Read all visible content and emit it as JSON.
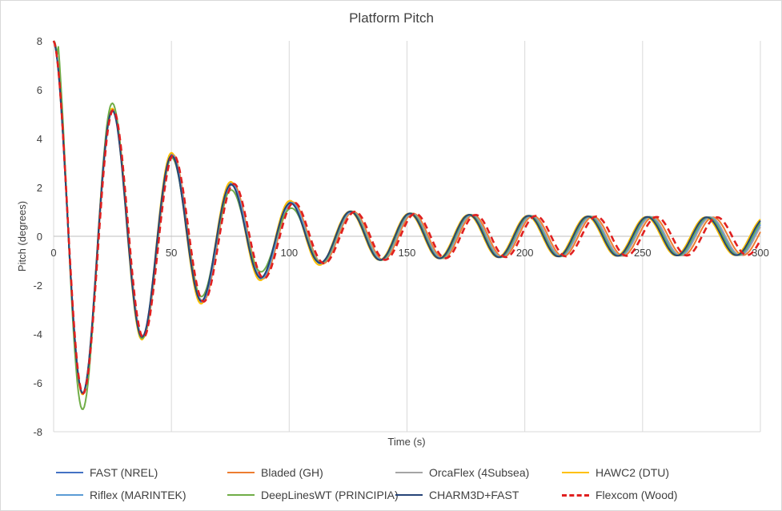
{
  "chart_data": {
    "type": "line",
    "title": "Platform Pitch",
    "xlabel": "Time (s)",
    "ylabel": "Pitch (degrees)",
    "xlim": [
      0,
      300
    ],
    "ylim": [
      -8,
      8
    ],
    "x_ticks": [
      "0",
      "50",
      "100",
      "150",
      "200",
      "250",
      "300"
    ],
    "y_ticks": [
      "8",
      "6",
      "4",
      "2",
      "0",
      "-2",
      "-4",
      "-6",
      "-8"
    ],
    "grid": "vertical-major",
    "legend_position": "bottom",
    "series": [
      {
        "name": "FAST (NREL)",
        "color": "#4472c4",
        "dash": "solid",
        "amp": 8.0,
        "decay": 0.0078,
        "period": 25.3,
        "phase": 0.0,
        "peaks": [
          [
            0,
            8.0
          ],
          [
            26,
            4.6
          ],
          [
            51,
            3.1
          ],
          [
            77,
            2.4
          ],
          [
            102,
            2.0
          ],
          [
            128,
            1.6
          ],
          [
            153,
            1.35
          ],
          [
            179,
            1.15
          ],
          [
            204,
            1.05
          ],
          [
            230,
            0.95
          ],
          [
            255,
            0.85
          ],
          [
            281,
            0.75
          ]
        ]
      },
      {
        "name": "Bladed (GH)",
        "color": "#ed7d31",
        "dash": "solid",
        "amp": 8.0,
        "decay": 0.0078,
        "period": 25.45,
        "phase": 0.0,
        "peaks": [
          [
            0,
            8.0
          ],
          [
            26,
            4.5
          ],
          [
            52,
            3.1
          ],
          [
            77,
            2.4
          ],
          [
            103,
            2.0
          ],
          [
            128,
            1.6
          ],
          [
            154,
            1.35
          ],
          [
            179,
            1.15
          ],
          [
            205,
            1.05
          ],
          [
            230,
            0.95
          ],
          [
            256,
            0.85
          ],
          [
            281,
            0.75
          ]
        ]
      },
      {
        "name": "OrcaFlex (4Subsea)",
        "color": "#a5a5a5",
        "dash": "solid",
        "amp": 8.0,
        "decay": 0.008,
        "period": 25.35,
        "phase": 0.0,
        "peaks": [
          [
            0,
            8.0
          ],
          [
            26,
            4.5
          ],
          [
            51,
            3.0
          ],
          [
            77,
            2.4
          ],
          [
            102,
            1.95
          ],
          [
            128,
            1.6
          ],
          [
            153,
            1.35
          ],
          [
            179,
            1.15
          ],
          [
            204,
            1.05
          ],
          [
            230,
            0.95
          ],
          [
            255,
            0.85
          ],
          [
            281,
            0.75
          ]
        ]
      },
      {
        "name": "HAWC2 (DTU)",
        "color": "#ffc000",
        "dash": "solid",
        "amp": 8.0,
        "decay": 0.0077,
        "period": 25.15,
        "phase": 0.0,
        "peaks": [
          [
            0,
            8.0
          ],
          [
            26,
            4.5
          ],
          [
            51,
            3.1
          ],
          [
            76,
            2.4
          ],
          [
            101,
            2.0
          ],
          [
            127,
            1.65
          ],
          [
            152,
            1.35
          ],
          [
            177,
            1.2
          ],
          [
            202,
            1.05
          ],
          [
            227,
            0.95
          ],
          [
            252,
            0.85
          ],
          [
            277,
            0.75
          ]
        ]
      },
      {
        "name": "Riflex (MARINTEK)",
        "color": "#5b9bd5",
        "dash": "solid",
        "amp": 8.0,
        "decay": 0.0079,
        "period": 25.3,
        "phase": 0.0,
        "peaks": [
          [
            0,
            8.0
          ],
          [
            26,
            4.5
          ],
          [
            51,
            3.05
          ],
          [
            77,
            2.4
          ],
          [
            102,
            1.95
          ],
          [
            128,
            1.6
          ],
          [
            153,
            1.35
          ],
          [
            179,
            1.15
          ],
          [
            204,
            1.05
          ],
          [
            230,
            0.95
          ],
          [
            255,
            0.85
          ],
          [
            281,
            0.75
          ]
        ]
      },
      {
        "name": "DeepLinesWT (PRINCIPIA)",
        "color": "#70ad47",
        "dash": "solid",
        "amp": 9.2,
        "decay": 0.0095,
        "period": 25.25,
        "phase": 0.0,
        "peaks": [
          [
            0,
            8.0
          ],
          [
            26,
            5.2
          ],
          [
            51,
            3.35
          ],
          [
            77,
            2.5
          ],
          [
            102,
            2.0
          ],
          [
            128,
            1.65
          ],
          [
            153,
            1.35
          ],
          [
            178,
            1.15
          ],
          [
            204,
            1.05
          ],
          [
            229,
            0.95
          ],
          [
            254,
            0.85
          ],
          [
            280,
            0.75
          ]
        ]
      },
      {
        "name": "CHARM3D+FAST",
        "color": "#264478",
        "dash": "solid",
        "amp": 8.0,
        "decay": 0.008,
        "period": 25.2,
        "phase": 0.0,
        "peaks": [
          [
            0,
            8.0
          ],
          [
            25,
            4.4
          ],
          [
            51,
            3.1
          ],
          [
            76,
            2.4
          ],
          [
            101,
            2.0
          ],
          [
            126,
            1.65
          ],
          [
            151,
            1.35
          ],
          [
            176,
            1.2
          ],
          [
            202,
            1.05
          ],
          [
            227,
            0.95
          ],
          [
            252,
            0.85
          ],
          [
            277,
            0.75
          ]
        ]
      },
      {
        "name": "Flexcom (Wood)",
        "color": "#e02020",
        "dash": "dashed",
        "amp": 8.0,
        "decay": 0.0078,
        "period": 25.6,
        "phase": 0.0,
        "peaks": [
          [
            0,
            8.0
          ],
          [
            26,
            4.6
          ],
          [
            51,
            3.1
          ],
          [
            77,
            2.4
          ],
          [
            103,
            1.95
          ],
          [
            129,
            1.65
          ],
          [
            155,
            1.35
          ],
          [
            180,
            1.15
          ],
          [
            206,
            1.05
          ],
          [
            232,
            0.95
          ],
          [
            258,
            0.85
          ],
          [
            284,
            0.75
          ]
        ]
      }
    ]
  }
}
